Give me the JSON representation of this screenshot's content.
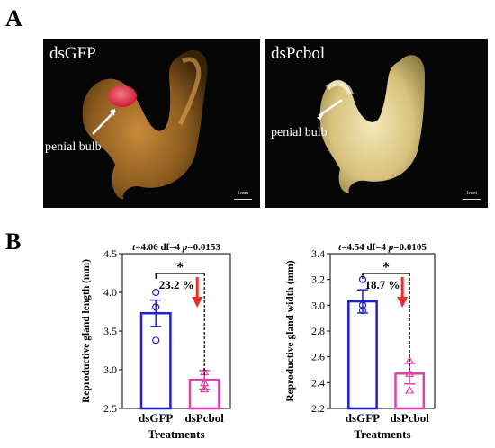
{
  "panels": {
    "a_label": "A",
    "b_label": "B"
  },
  "photos": [
    {
      "label": "dsGFP",
      "annotation": "penial bulb",
      "scale": "1mm"
    },
    {
      "label": "dsPcbol",
      "annotation": "penial bulb",
      "scale": "1mm"
    }
  ],
  "chart_data": [
    {
      "type": "bar",
      "title": "",
      "xlabel": "Treatments",
      "ylabel": "Reproductive gland length (mm)",
      "ylim": [
        2.5,
        4.5
      ],
      "yticks": [
        "2.5",
        "3.0",
        "3.5",
        "4.0",
        "4.5"
      ],
      "categories": [
        "dsGFP",
        "dsPcbol"
      ],
      "values": [
        3.73,
        2.87
      ],
      "errors": [
        0.17,
        0.12
      ],
      "points": [
        [
          3.38,
          3.81,
          4.0
        ],
        [
          2.75,
          2.83,
          2.97
        ]
      ],
      "stat_text": "t=4.06 df=4 p=0.0153",
      "stat_prefix": "t",
      "stat_mid": "=4.06 df=4 ",
      "stat_p": "p",
      "stat_pval": "=0.0153",
      "significance": "*",
      "percent_label": "23.2 %",
      "colors": [
        "#1f1fcf",
        "#e040a8"
      ]
    },
    {
      "type": "bar",
      "title": "",
      "xlabel": "Treatments",
      "ylabel": "Reproductive gland width (mm)",
      "ylim": [
        2.2,
        3.4
      ],
      "yticks": [
        "2.2",
        "2.4",
        "2.6",
        "2.8",
        "3.0",
        "3.2",
        "3.4"
      ],
      "categories": [
        "dsGFP",
        "dsPcbol"
      ],
      "values": [
        3.03,
        2.47
      ],
      "errors": [
        0.09,
        0.08
      ],
      "points": [
        [
          2.96,
          3.0,
          3.2
        ],
        [
          2.34,
          2.47,
          2.57
        ]
      ],
      "stat_text": "t=4.54 df=4 p=0.0105",
      "stat_prefix": "t",
      "stat_mid": "=4.54 df=4 ",
      "stat_p": "p",
      "stat_pval": "=0.0105",
      "significance": "*",
      "percent_label": "18.7 %",
      "colors": [
        "#1f1fcf",
        "#e040a8"
      ]
    }
  ]
}
